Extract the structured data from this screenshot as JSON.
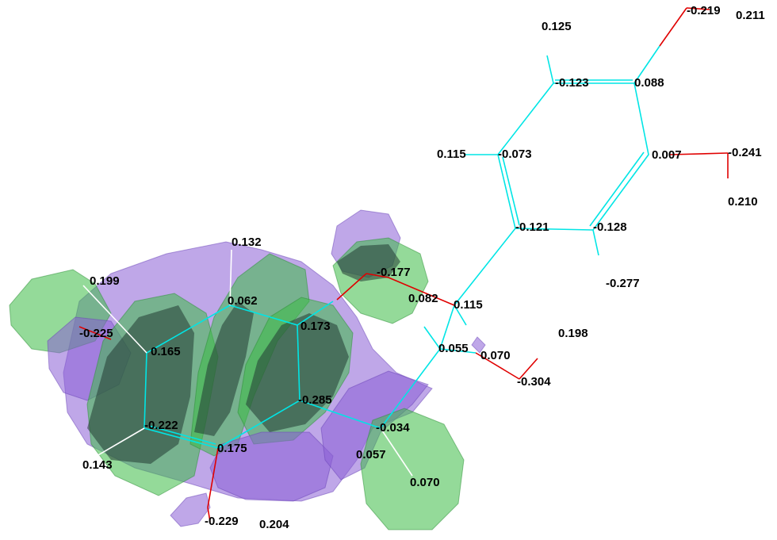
{
  "labels": [
    "-0.219",
    "0.211",
    "0.125",
    "-0.123",
    "0.088",
    "0.115",
    "-0.073",
    "0.007",
    "-0.241",
    "0.210",
    "-0.121",
    "-0.128",
    "0.132",
    "-0.177",
    "0.199",
    "-0.277",
    "0.062",
    "0.082",
    "0.115",
    "-0.225",
    "0.173",
    "0.198",
    "0.165",
    "0.055",
    "0.070",
    "-0.304",
    "-0.285",
    "-0.034",
    "-0.222",
    "0.175",
    "0.057",
    "0.143",
    "0.070",
    "-0.229",
    "0.204"
  ],
  "colors": {
    "carbon_bond": "#00e5e5",
    "oxygen_bond": "#e00000",
    "hydrogen_bond": "#ffffff",
    "orbital_negative": "#8a5fd6",
    "orbital_positive": "#3dbb45",
    "background": "#ffffff"
  }
}
